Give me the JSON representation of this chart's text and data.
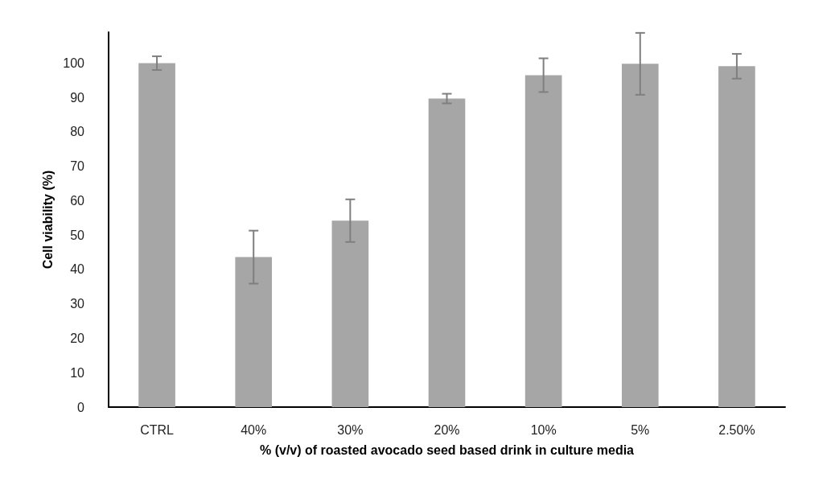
{
  "chart_data": {
    "type": "bar",
    "xlabel": "% (v/v) of roasted avocado seed based drink in culture media",
    "ylabel": "Cell viability (%)",
    "categories": [
      "CTRL",
      "40%",
      "30%",
      "20%",
      "10%",
      "5%",
      "2.50%"
    ],
    "values": [
      100,
      43.6,
      54.2,
      89.7,
      96.5,
      99.8,
      99.1
    ],
    "errors": [
      2,
      7.7,
      6.2,
      1.4,
      4.9,
      9,
      3.6
    ],
    "color": "#a6a6a6",
    "ylim": [
      0,
      109
    ],
    "yticks": [
      0,
      10,
      20,
      30,
      40,
      50,
      60,
      70,
      80,
      90,
      100
    ],
    "grid": false
  }
}
